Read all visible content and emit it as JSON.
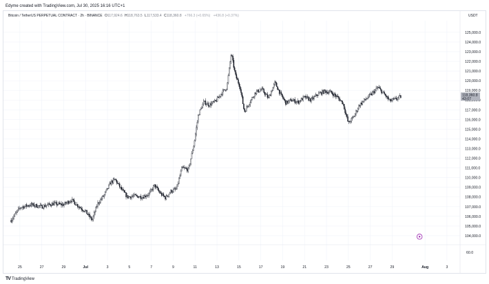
{
  "header": {
    "created_by": "Edyme created with TradingView.com, Jul 30, 2025 16:16 UTC+1"
  },
  "legend": {
    "symbol": "Bitcoin / TetherUS PERPETUAL CONTRACT · 2h · BINANCE",
    "open_label": "O",
    "open_value": "117,924.6",
    "high_label": "H",
    "high_value": "118,763.5",
    "low_label": "L",
    "low_value": "117,533.4",
    "close_label": "C",
    "close_value": "118,360.8",
    "change": "+766.3 (+0.65%)",
    "change2": "+436.8 (+0.37%)"
  },
  "axis": {
    "currency": "USDT",
    "price_label_current": "118,360.8",
    "price_label_countdown": "43:07",
    "bottom_pane_value": "60.0"
  },
  "footer": {
    "brand": "TradingView"
  },
  "colors": {
    "candle": "#131722",
    "grid": "#f0f3fa",
    "price_tag": "#b2b5be",
    "marker": "#9c27b0"
  },
  "chart_data": {
    "type": "candlestick",
    "symbol": "BTCUSDT.P",
    "interval": "2h",
    "y_ticks": [
      104000,
      105000,
      106000,
      107000,
      108000,
      109000,
      110000,
      111000,
      112000,
      113000,
      114000,
      115000,
      116000,
      117000,
      118000,
      119000,
      120000,
      121000,
      122000,
      123000,
      124000,
      125000
    ],
    "ylim": [
      103000,
      126200
    ],
    "x_ticks": [
      {
        "label": "25",
        "day": -6
      },
      {
        "label": "27",
        "day": -4
      },
      {
        "label": "29",
        "day": -2
      },
      {
        "label": "Jul",
        "day": 0
      },
      {
        "label": "3",
        "day": 2
      },
      {
        "label": "5",
        "day": 4
      },
      {
        "label": "7",
        "day": 6
      },
      {
        "label": "9",
        "day": 8
      },
      {
        "label": "11",
        "day": 10
      },
      {
        "label": "13",
        "day": 12
      },
      {
        "label": "15",
        "day": 14
      },
      {
        "label": "17",
        "day": 16
      },
      {
        "label": "19",
        "day": 18
      },
      {
        "label": "21",
        "day": 20
      },
      {
        "label": "23",
        "day": 22
      },
      {
        "label": "25",
        "day": 24
      },
      {
        "label": "27",
        "day": 26
      },
      {
        "label": "29",
        "day": 28
      },
      {
        "label": "Aug",
        "day": 31
      },
      {
        "label": "3",
        "day": 33
      }
    ],
    "close_path": [
      {
        "day": -6.8,
        "price": 105600
      },
      {
        "day": -6.0,
        "price": 106900
      },
      {
        "day": -5.0,
        "price": 107200
      },
      {
        "day": -4.0,
        "price": 107000
      },
      {
        "day": -3.0,
        "price": 107300
      },
      {
        "day": -2.0,
        "price": 107200
      },
      {
        "day": -1.3,
        "price": 107700
      },
      {
        "day": -0.6,
        "price": 107000
      },
      {
        "day": 0.0,
        "price": 106500
      },
      {
        "day": 0.6,
        "price": 105600
      },
      {
        "day": 1.1,
        "price": 107300
      },
      {
        "day": 1.7,
        "price": 108200
      },
      {
        "day": 2.3,
        "price": 109500
      },
      {
        "day": 2.7,
        "price": 109800
      },
      {
        "day": 3.2,
        "price": 108900
      },
      {
        "day": 3.8,
        "price": 108000
      },
      {
        "day": 4.5,
        "price": 108100
      },
      {
        "day": 5.2,
        "price": 108000
      },
      {
        "day": 5.8,
        "price": 108300
      },
      {
        "day": 6.3,
        "price": 109200
      },
      {
        "day": 6.8,
        "price": 108400
      },
      {
        "day": 7.3,
        "price": 107900
      },
      {
        "day": 7.8,
        "price": 108600
      },
      {
        "day": 8.3,
        "price": 108800
      },
      {
        "day": 8.8,
        "price": 111000
      },
      {
        "day": 9.4,
        "price": 110800
      },
      {
        "day": 9.9,
        "price": 113500
      },
      {
        "day": 10.3,
        "price": 116500
      },
      {
        "day": 10.8,
        "price": 117800
      },
      {
        "day": 11.3,
        "price": 117500
      },
      {
        "day": 11.9,
        "price": 117900
      },
      {
        "day": 12.4,
        "price": 118700
      },
      {
        "day": 12.9,
        "price": 119300
      },
      {
        "day": 13.3,
        "price": 122800
      },
      {
        "day": 13.7,
        "price": 120500
      },
      {
        "day": 14.1,
        "price": 119400
      },
      {
        "day": 14.5,
        "price": 116800
      },
      {
        "day": 15.0,
        "price": 117800
      },
      {
        "day": 15.5,
        "price": 118800
      },
      {
        "day": 16.1,
        "price": 119100
      },
      {
        "day": 16.7,
        "price": 118200
      },
      {
        "day": 17.3,
        "price": 119800
      },
      {
        "day": 17.8,
        "price": 118600
      },
      {
        "day": 18.3,
        "price": 117700
      },
      {
        "day": 18.8,
        "price": 118000
      },
      {
        "day": 19.4,
        "price": 117800
      },
      {
        "day": 20.0,
        "price": 118300
      },
      {
        "day": 20.6,
        "price": 118000
      },
      {
        "day": 21.2,
        "price": 118600
      },
      {
        "day": 21.8,
        "price": 118900
      },
      {
        "day": 22.4,
        "price": 118800
      },
      {
        "day": 23.0,
        "price": 118300
      },
      {
        "day": 23.5,
        "price": 117700
      },
      {
        "day": 24.0,
        "price": 115600
      },
      {
        "day": 24.5,
        "price": 116300
      },
      {
        "day": 25.0,
        "price": 117500
      },
      {
        "day": 25.6,
        "price": 118100
      },
      {
        "day": 26.1,
        "price": 118600
      },
      {
        "day": 26.7,
        "price": 119300
      },
      {
        "day": 27.2,
        "price": 118700
      },
      {
        "day": 27.8,
        "price": 117900
      },
      {
        "day": 28.3,
        "price": 118100
      },
      {
        "day": 28.8,
        "price": 118360
      }
    ]
  }
}
